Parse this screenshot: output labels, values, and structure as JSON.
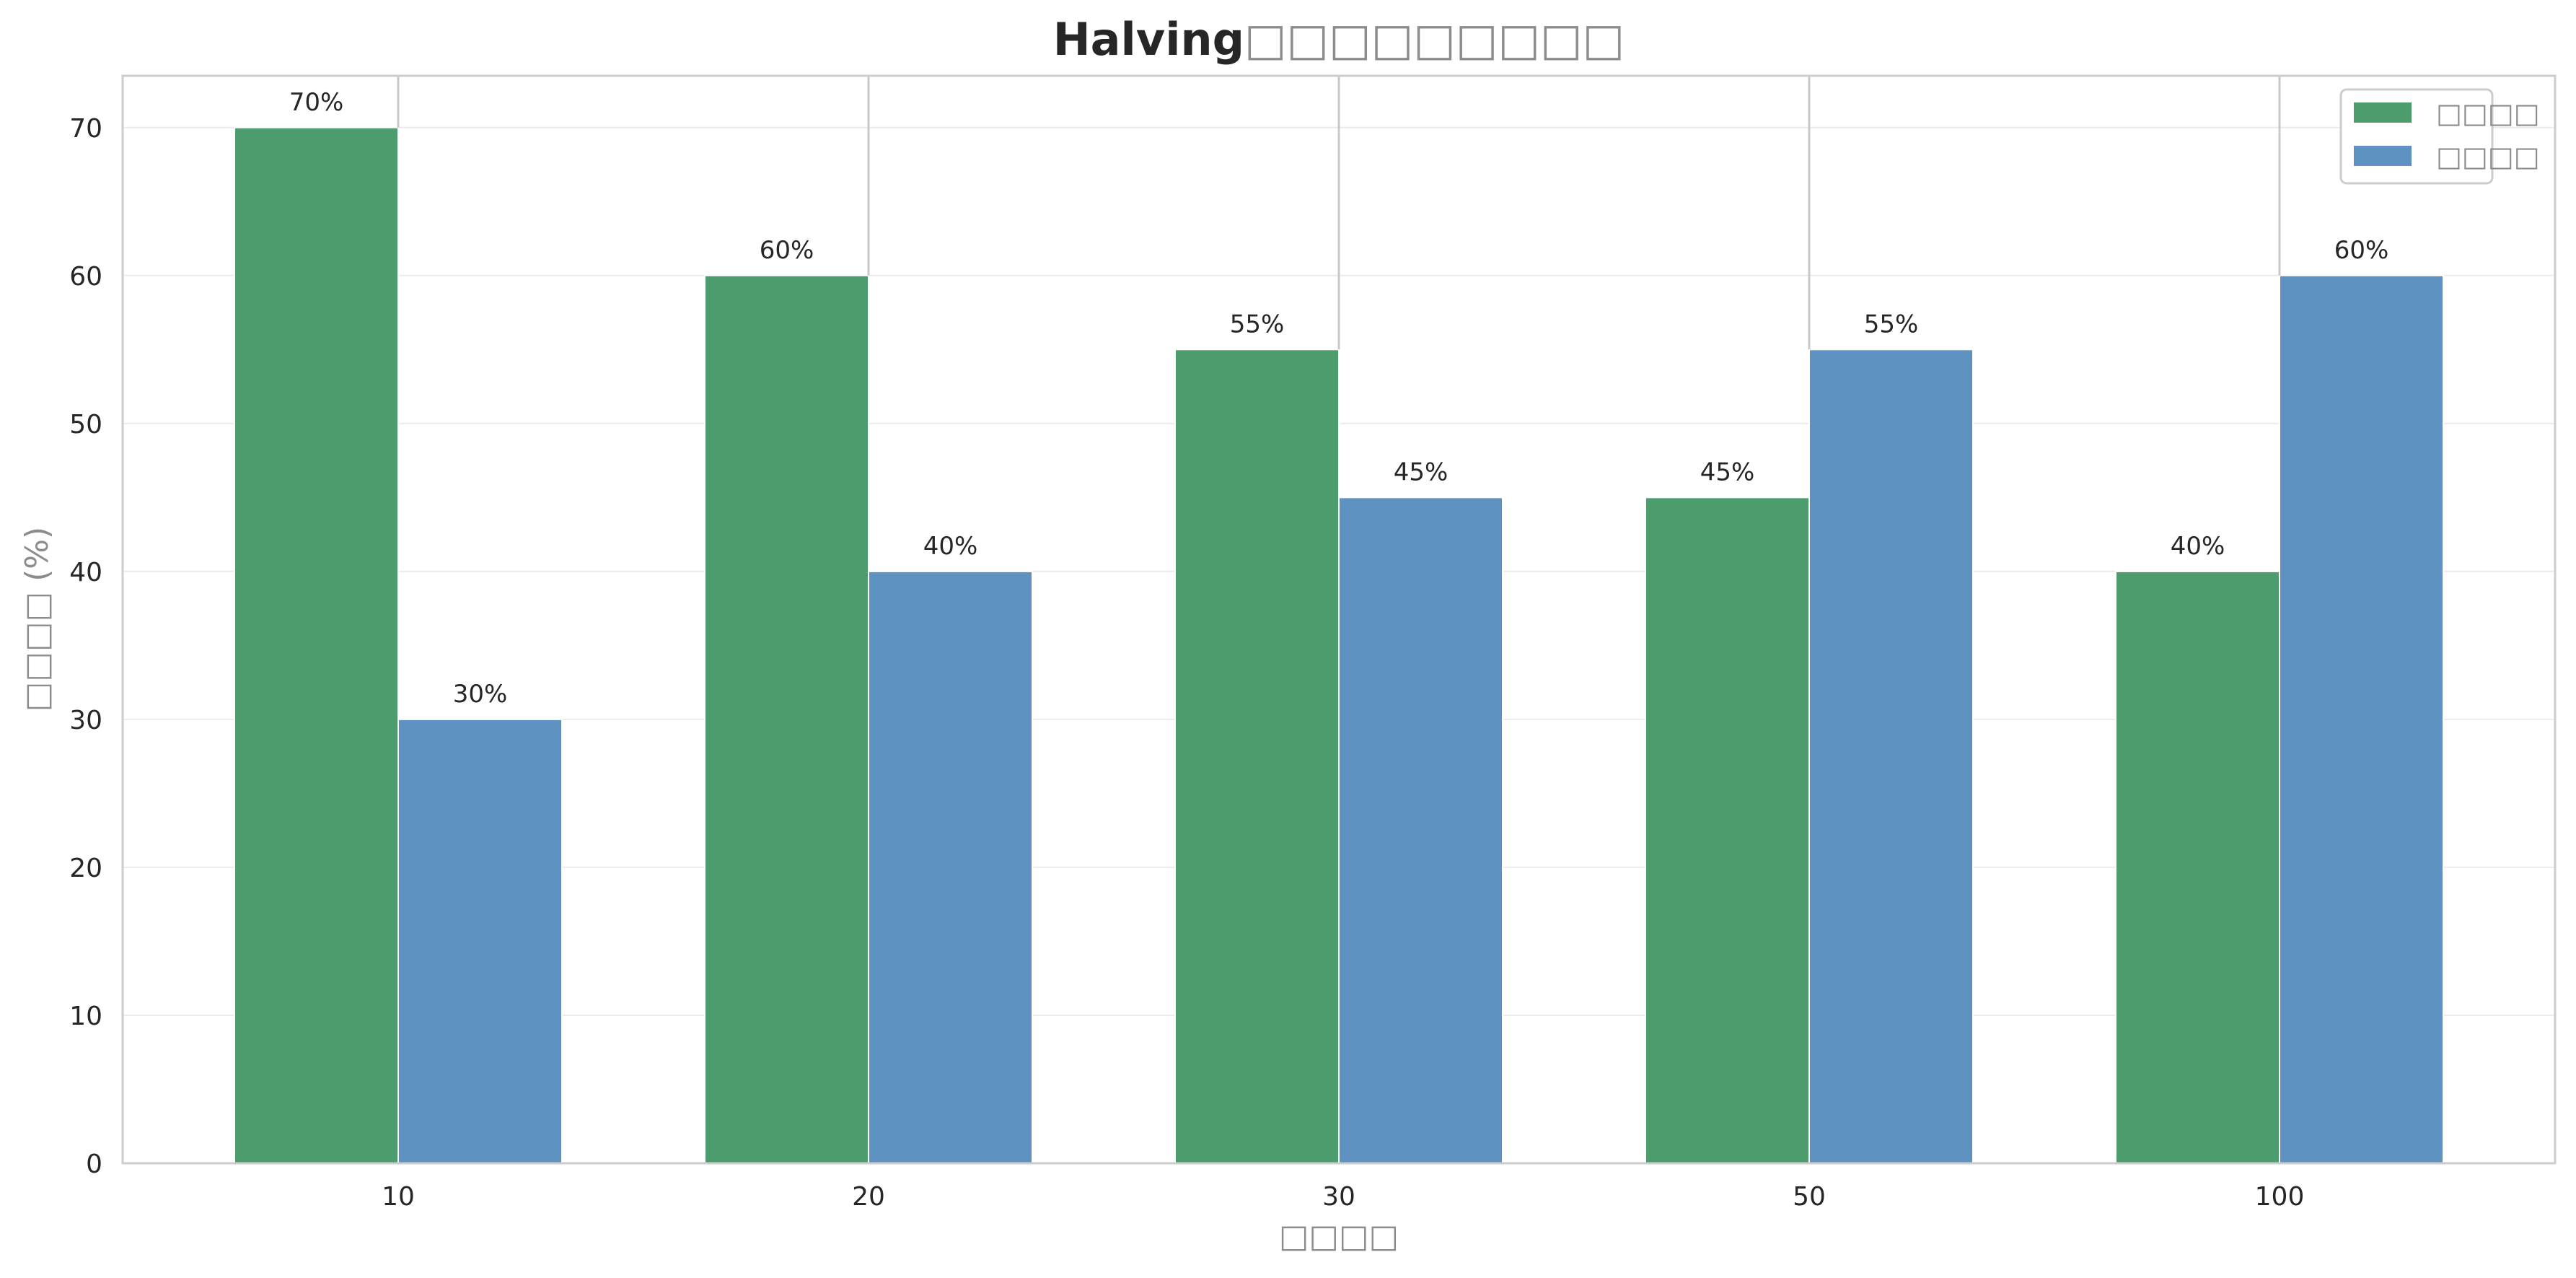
{
  "chart_data": {
    "type": "bar",
    "title": "Halving□□□□□□□□□",
    "title_bold_part": "Halving",
    "title_rest_part": "□□□□□□□□□",
    "xlabel": "□□□□",
    "ylabel": "□□□□ (%)",
    "categories": [
      "10",
      "20",
      "30",
      "50",
      "100"
    ],
    "series": [
      {
        "name": "□□□□",
        "color": "#4c9c6d",
        "values": [
          70,
          60,
          55,
          45,
          40
        ]
      },
      {
        "name": "□□□□",
        "color": "#5e93c1",
        "values": [
          30,
          40,
          45,
          55,
          60
        ]
      }
    ],
    "value_labels": [
      [
        "70%",
        "60%",
        "55%",
        "45%",
        "40%"
      ],
      [
        "30%",
        "40%",
        "45%",
        "55%",
        "60%"
      ]
    ],
    "ylim": [
      0,
      73.5
    ],
    "yticks": [
      0,
      10,
      20,
      30,
      40,
      50,
      60,
      70
    ],
    "grid": true,
    "legend_position": "top-right"
  }
}
